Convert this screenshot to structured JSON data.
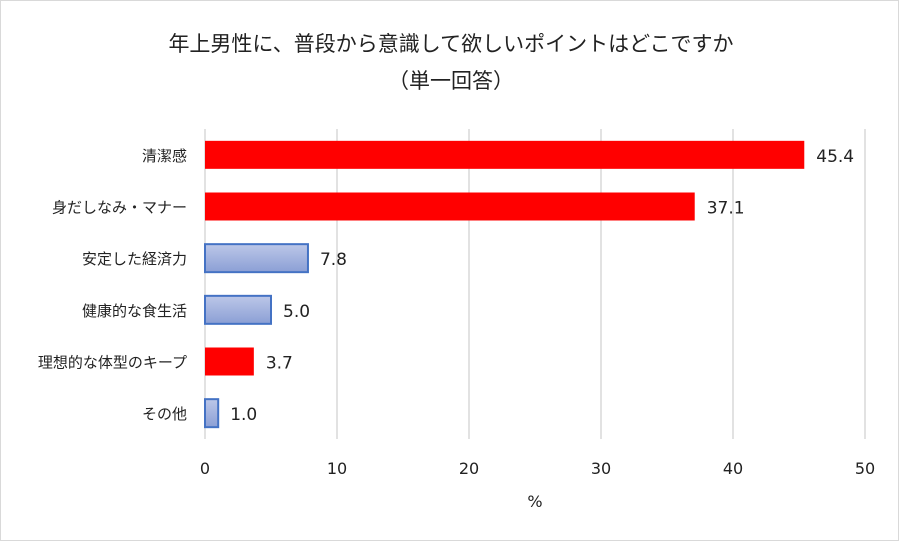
{
  "chart_data": {
    "type": "bar",
    "orientation": "horizontal",
    "title": "年上男性に、普段から意識して欲しいポイントはどこですか",
    "subtitle": "（単一回答）",
    "categories": [
      "清潔感",
      "身だしなみ・マナー",
      "安定した経済力",
      "健康的な食生活",
      "理想的な体型のキープ",
      "その他"
    ],
    "values": [
      45.4,
      37.1,
      7.8,
      5.0,
      3.7,
      1.0
    ],
    "value_labels": [
      "45.4",
      "37.1",
      "7.8",
      "5.0",
      "3.7",
      "1.0"
    ],
    "bar_styles": [
      "red",
      "red",
      "blue",
      "blue",
      "red",
      "blue"
    ],
    "colors": {
      "red": "#ff0000",
      "blue_fill": "#a4b4e0",
      "blue_border": "#4472c4",
      "grid": "#d9d9d9"
    },
    "xlabel": "%",
    "ylabel": "",
    "xlim": [
      0,
      50
    ],
    "xticks": [
      "0",
      "10",
      "20",
      "30",
      "40",
      "50"
    ],
    "grid": true,
    "legend": "none"
  }
}
